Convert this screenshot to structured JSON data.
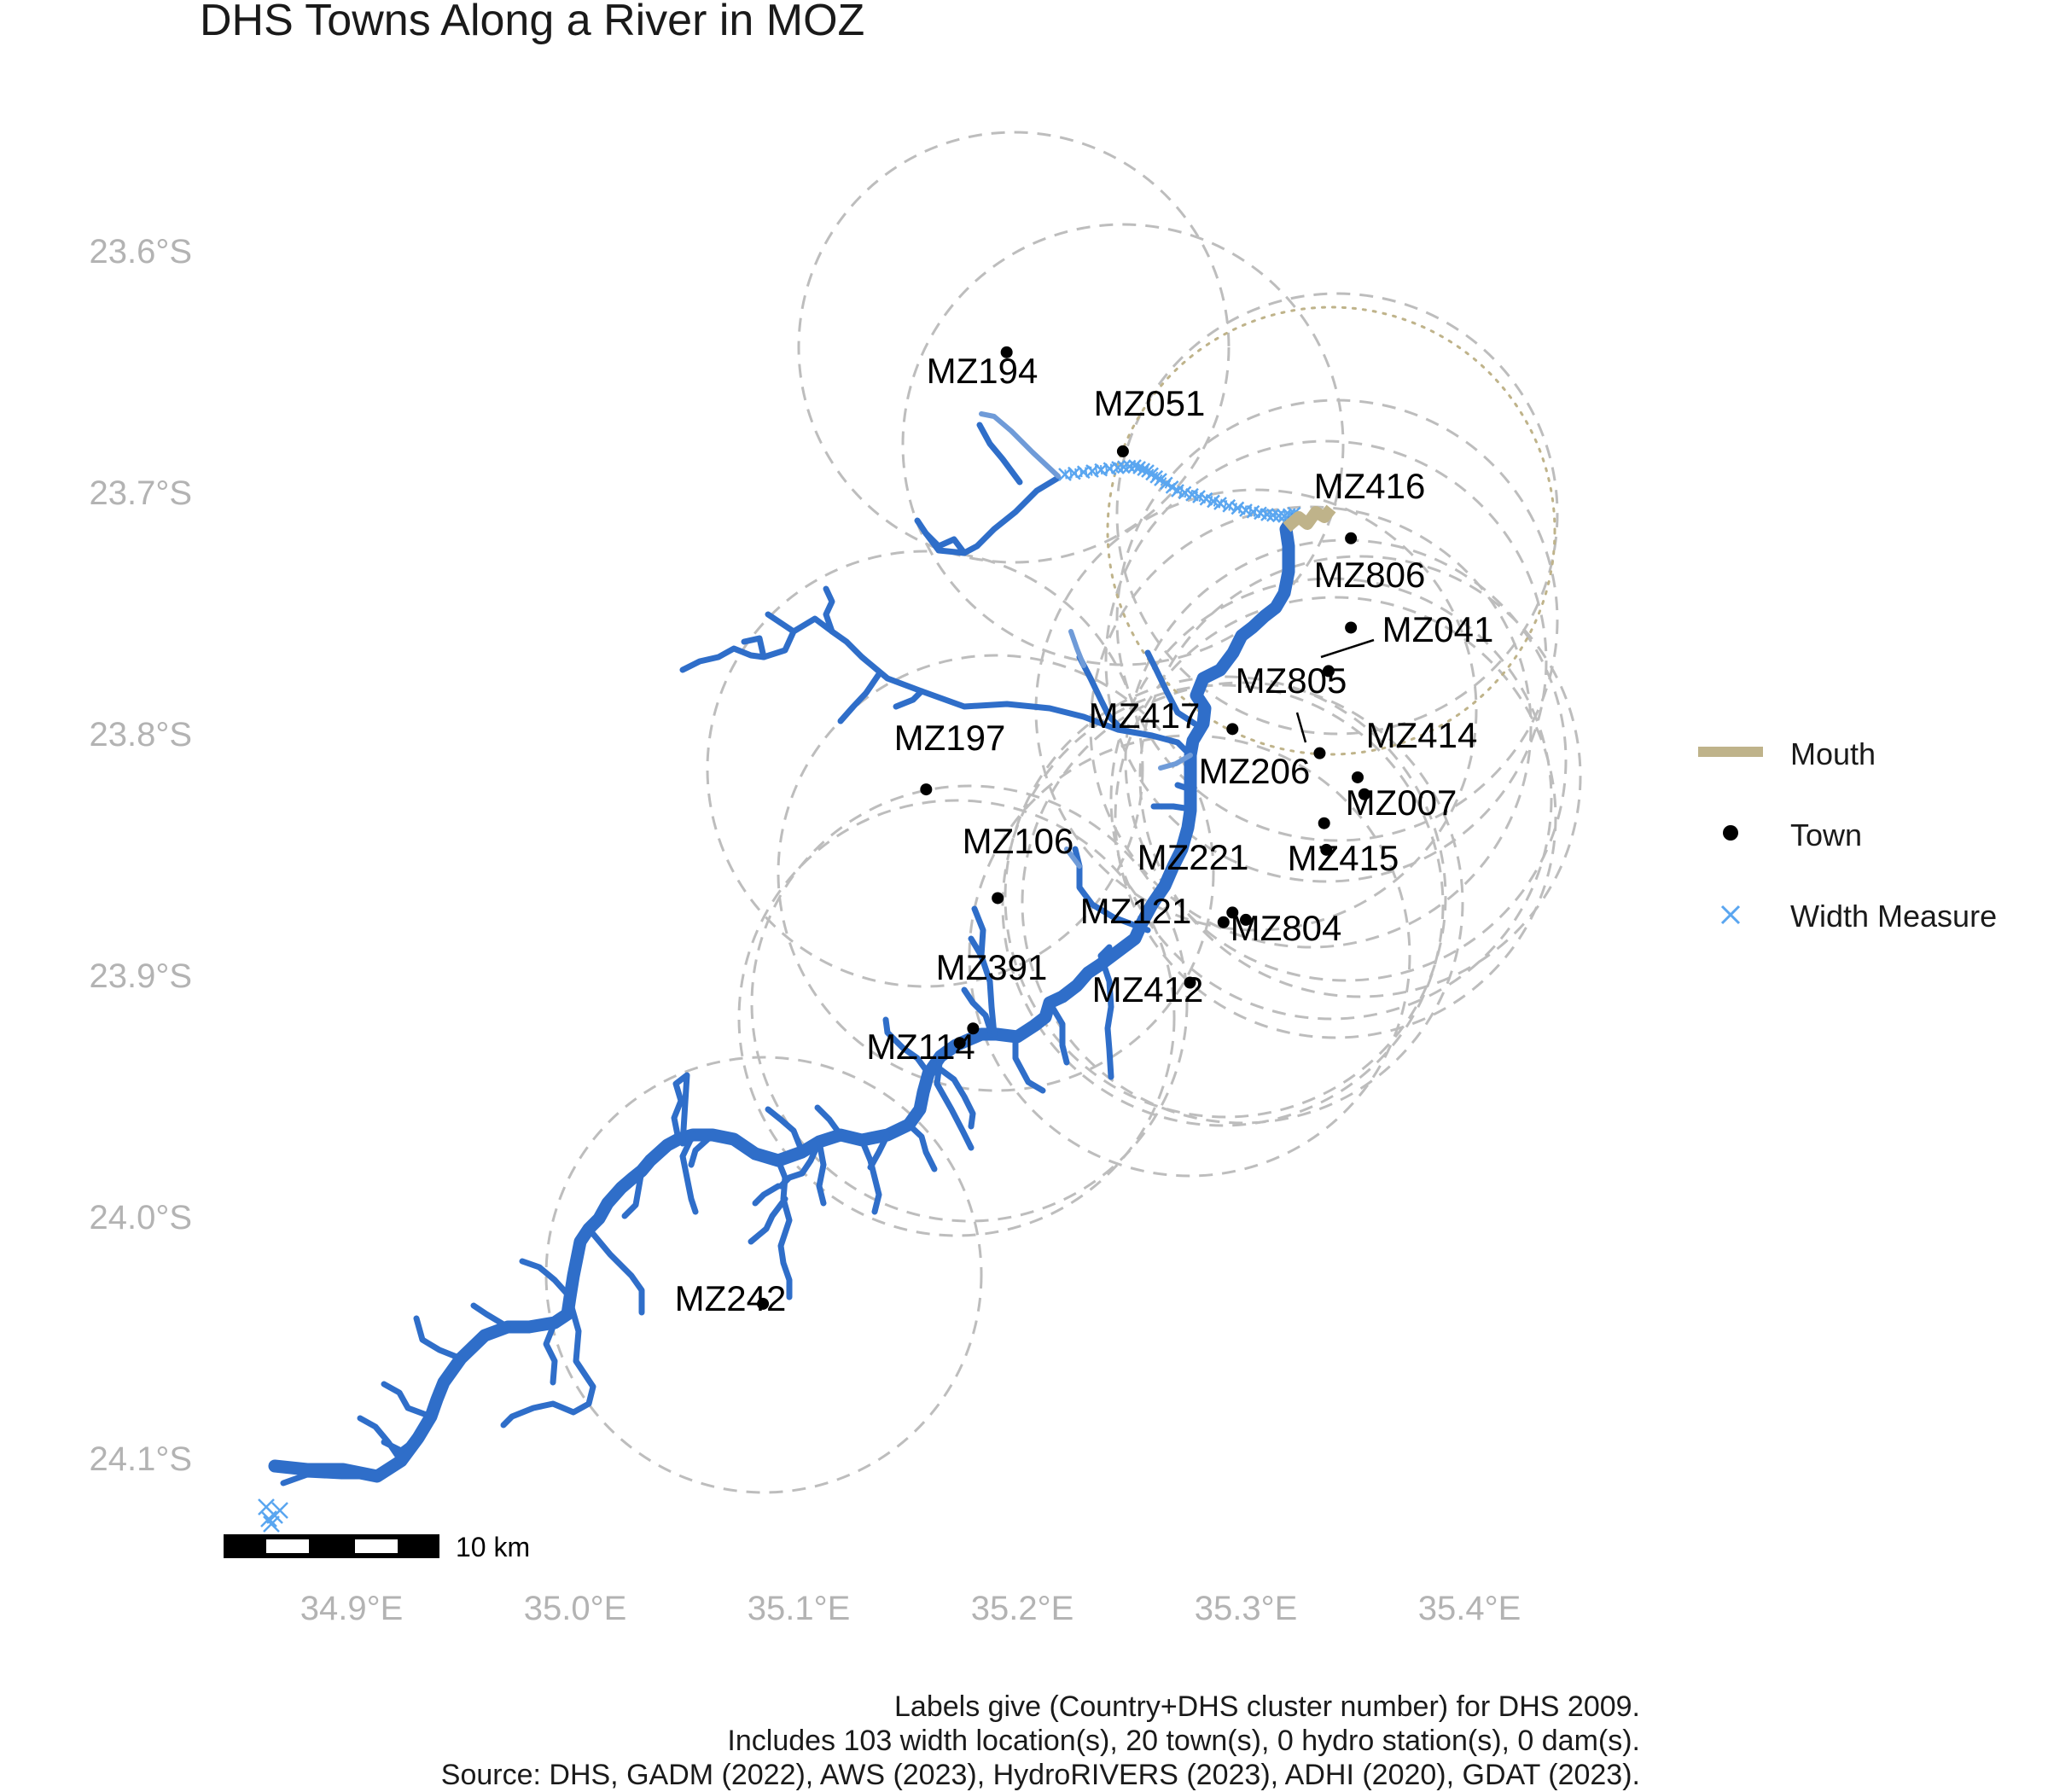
{
  "title": "DHS Towns Along a River in MOZ",
  "axes": {
    "lat_ticks": [
      "23.6°S",
      "23.7°S",
      "23.8°S",
      "23.9°S",
      "24.0°S",
      "24.1°S"
    ],
    "lon_ticks": [
      "34.9°E",
      "35.0°E",
      "35.1°E",
      "35.2°E",
      "35.3°E",
      "35.4°E"
    ]
  },
  "legend": {
    "mouth": "Mouth",
    "town": "Town",
    "width_measure": "Width Measure"
  },
  "scalebar": {
    "label": "10 km"
  },
  "towns": [
    {
      "id": "MZ194",
      "lon": 35.193,
      "lat": 23.642
    },
    {
      "id": "MZ051",
      "lon": 35.245,
      "lat": 23.683
    },
    {
      "id": "MZ416",
      "lon": 35.347,
      "lat": 23.719
    },
    {
      "id": "MZ806",
      "lon": 35.347,
      "lat": 23.756
    },
    {
      "id": "MZ041",
      "lon": 35.337,
      "lat": 23.774
    },
    {
      "id": "MZ805",
      "lon": 35.294,
      "lat": 23.798
    },
    {
      "id": "MZ417",
      "lon": 35.333,
      "lat": 23.808
    },
    {
      "id": "MZ414",
      "lon": 35.35,
      "lat": 23.818
    },
    {
      "id": "MZ197",
      "lon": 35.157,
      "lat": 23.823
    },
    {
      "id": "MZ206",
      "lon": 35.353,
      "lat": 23.825
    },
    {
      "id": "MZ007",
      "lon": 35.335,
      "lat": 23.837
    },
    {
      "id": "MZ415",
      "lon": 35.336,
      "lat": 23.848
    },
    {
      "id": "MZ106",
      "lon": 35.189,
      "lat": 23.868
    },
    {
      "id": "MZ221",
      "lon": 35.294,
      "lat": 23.874
    },
    {
      "id": "MZ804",
      "lon": 35.3,
      "lat": 23.877
    },
    {
      "id": "MZ121",
      "lon": 35.29,
      "lat": 23.878
    },
    {
      "id": "MZ412",
      "lon": 35.275,
      "lat": 23.903
    },
    {
      "id": "MZ391",
      "lon": 35.178,
      "lat": 23.922
    },
    {
      "id": "MZ114",
      "lon": 35.172,
      "lat": 23.928
    },
    {
      "id": "MZ242",
      "lon": 35.084,
      "lat": 24.036
    }
  ],
  "caption": [
    "Labels give (Country+DHS cluster number) for DHS 2009.",
    "Includes 103 width location(s), 20 town(s), 0 hydro station(s), 0 dam(s).",
    "Source: DHS, GADM (2022), AWS (2023), HydroRIVERS (2023), ADHI (2020), GDAT (2023)."
  ],
  "colors": {
    "river": "#2f6ec9",
    "river_light": "#6f9bd8",
    "width_measure": "#5aa6f0",
    "mouth": "#bfb38a",
    "buffer": "#bdbdbd",
    "axis_text": "#b3b3b3",
    "town": "#000000"
  }
}
